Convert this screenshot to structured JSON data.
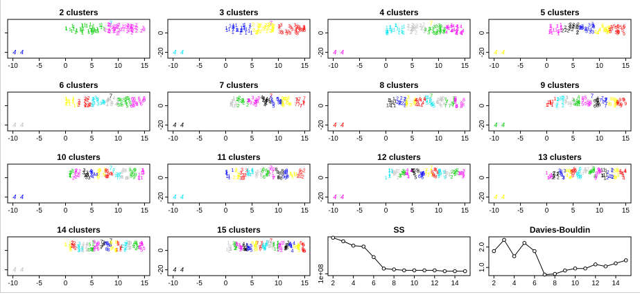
{
  "chart_data": {
    "type": "panel-grid",
    "scatter_x_ticks": [
      -10,
      -5,
      0,
      5,
      10,
      15
    ],
    "scatter_y_ticks": [
      "-20",
      "0"
    ],
    "scatter_xlim": [
      -11,
      16
    ],
    "scatter_ylim": [
      -26,
      14
    ],
    "palette": [
      "#000000",
      "#ff0000",
      "#00cd00",
      "#0000ff",
      "#00e5ee",
      "#ff00ff",
      "#ffff00",
      "#bebebe"
    ],
    "panels": [
      {
        "kind": "scatter",
        "title": "2 clusters",
        "k": 2,
        "y_ticks_shown": false
      },
      {
        "kind": "scatter",
        "title": "3 clusters",
        "k": 3,
        "y_ticks_shown": true
      },
      {
        "kind": "scatter",
        "title": "4 clusters",
        "k": 4,
        "y_ticks_shown": true
      },
      {
        "kind": "scatter",
        "title": "5 clusters",
        "k": 5,
        "y_ticks_shown": true
      },
      {
        "kind": "scatter",
        "title": "6 clusters",
        "k": 6,
        "y_ticks_shown": false
      },
      {
        "kind": "scatter",
        "title": "7 clusters",
        "k": 7,
        "y_ticks_shown": true
      },
      {
        "kind": "scatter",
        "title": "8 clusters",
        "k": 8,
        "y_ticks_shown": true
      },
      {
        "kind": "scatter",
        "title": "9 clusters",
        "k": 9,
        "y_ticks_shown": true
      },
      {
        "kind": "scatter",
        "title": "10 clusters",
        "k": 10,
        "y_ticks_shown": false
      },
      {
        "kind": "scatter",
        "title": "11 clusters",
        "k": 11,
        "y_ticks_shown": true
      },
      {
        "kind": "scatter",
        "title": "12 clusters",
        "k": 12,
        "y_ticks_shown": true
      },
      {
        "kind": "scatter",
        "title": "13 clusters",
        "k": 13,
        "y_ticks_shown": true
      },
      {
        "kind": "scatter",
        "title": "14 clusters",
        "k": 14,
        "y_ticks_shown": false
      },
      {
        "kind": "scatter",
        "title": "15 clusters",
        "k": 15,
        "y_ticks_shown": true
      },
      {
        "kind": "line",
        "title": "SS",
        "x": [
          2,
          3,
          4,
          5,
          6,
          7,
          8,
          9,
          10,
          11,
          12,
          13,
          14,
          15
        ],
        "y": [
          3.05,
          2.85,
          2.6,
          2.55,
          1.95,
          1.3,
          1.25,
          1.2,
          1.2,
          1.2,
          1.2,
          1.15,
          1.15,
          1.15
        ],
        "x_ticks": [
          2,
          4,
          6,
          8,
          10,
          12,
          14
        ],
        "y_ticks": [
          {
            "value": 1.0,
            "label": "1e+08"
          }
        ],
        "xlim": [
          1.5,
          15.5
        ],
        "ylim": [
          0.9,
          3.1
        ]
      },
      {
        "kind": "line",
        "title": "Davies-Bouldin",
        "x": [
          2,
          3,
          4,
          5,
          6,
          7,
          8,
          9,
          10,
          11,
          12,
          13,
          14,
          15
        ],
        "y": [
          1.8,
          2.35,
          1.55,
          2.2,
          1.8,
          0.65,
          0.68,
          0.85,
          0.95,
          0.95,
          1.15,
          1.05,
          1.2,
          1.35
        ],
        "x_ticks": [
          2,
          4,
          6,
          8,
          10,
          12,
          14
        ],
        "y_ticks": [
          {
            "value": 1.0,
            "label": "1.0"
          },
          {
            "value": 2.0,
            "label": "2.0"
          }
        ],
        "xlim": [
          1.5,
          15.5
        ],
        "ylim": [
          0.6,
          2.5
        ]
      }
    ]
  }
}
